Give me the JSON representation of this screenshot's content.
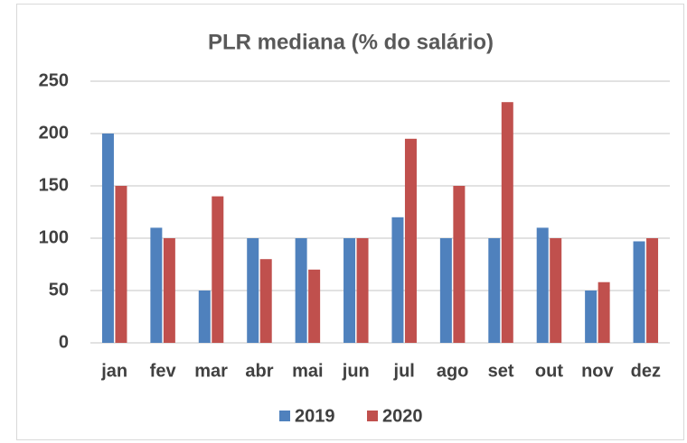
{
  "chart_data": {
    "type": "bar",
    "title": "PLR mediana (% do salário)",
    "categories": [
      "jan",
      "fev",
      "mar",
      "abr",
      "mai",
      "jun",
      "jul",
      "ago",
      "set",
      "out",
      "nov",
      "dez"
    ],
    "series": [
      {
        "name": "2019",
        "color": "#4f81bd",
        "values": [
          200,
          110,
          50,
          100,
          100,
          100,
          120,
          100,
          100,
          110,
          50,
          97
        ]
      },
      {
        "name": "2020",
        "color": "#c0504d",
        "values": [
          150,
          100,
          140,
          80,
          70,
          100,
          195,
          150,
          230,
          100,
          58,
          100
        ]
      }
    ],
    "ylim": [
      0,
      250
    ],
    "yticks": [
      0,
      50,
      100,
      150,
      200,
      250
    ],
    "grid": true,
    "legend": "bottom"
  }
}
